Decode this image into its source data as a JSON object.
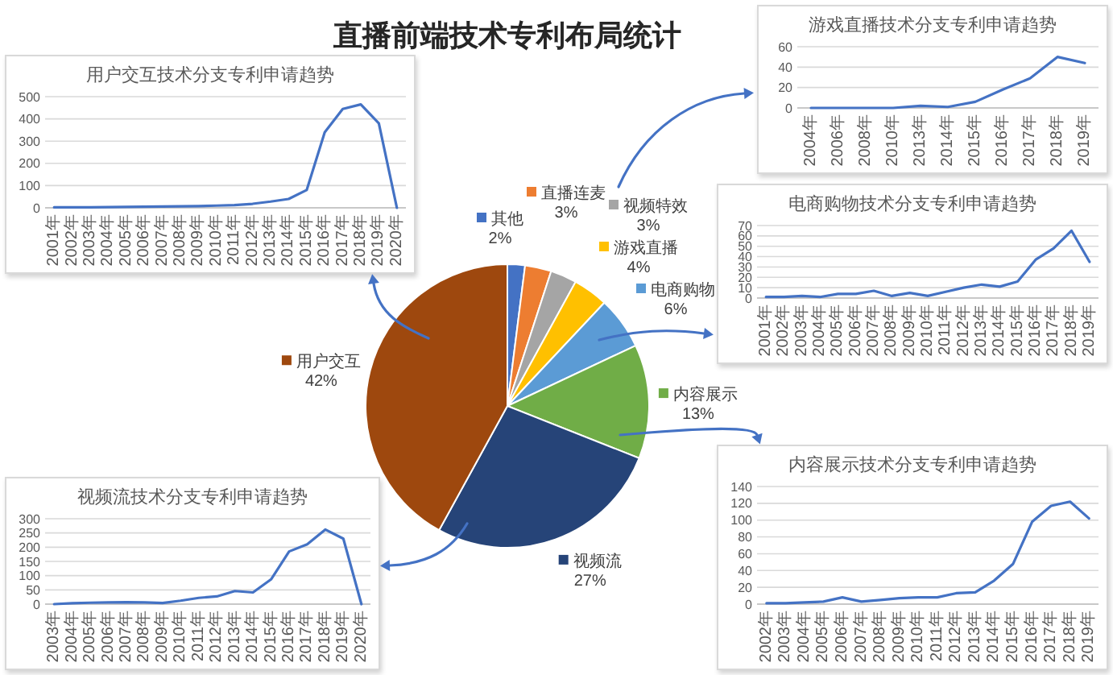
{
  "chart_data": [
    {
      "type": "pie",
      "title": "直播前端技术专利布局统计",
      "categories": [
        "其他",
        "直播连麦",
        "视频特效",
        "游戏直播",
        "电商购物",
        "内容展示",
        "视频流",
        "用户交互"
      ],
      "values": [
        2,
        3,
        3,
        4,
        6,
        13,
        27,
        42
      ],
      "colors": [
        "#4472c4",
        "#ed7d31",
        "#a5a5a5",
        "#ffc000",
        "#5b9bd5",
        "#70ad47",
        "#264478",
        "#9e480e"
      ],
      "value_labels": [
        "2%",
        "3%",
        "3%",
        "4%",
        "6%",
        "13%",
        "27%",
        "42%"
      ],
      "legend": "top right"
    },
    {
      "type": "line",
      "title": "用户交互技术分支专利申请趋势",
      "categories": [
        "2001年",
        "2002年",
        "2003年",
        "2004年",
        "2005年",
        "2006年",
        "2007年",
        "2008年",
        "2009年",
        "2010年",
        "2011年",
        "2012年",
        "2013年",
        "2014年",
        "2015年",
        "2016年",
        "2017年",
        "2018年",
        "2019年",
        "2020年"
      ],
      "series": [
        {
          "color": "#4472c4",
          "values": [
            2,
            2,
            2,
            3,
            4,
            5,
            6,
            7,
            8,
            10,
            12,
            18,
            28,
            40,
            80,
            340,
            445,
            465,
            380,
            0
          ]
        }
      ],
      "ylim": [
        0,
        500
      ],
      "yticks": [
        0,
        100,
        200,
        300,
        400,
        500
      ],
      "grid": "y"
    },
    {
      "type": "line",
      "title": "游戏直播技术分支专利申请趋势",
      "categories": [
        "2004年",
        "2006年",
        "2008年",
        "2010年",
        "2013年",
        "2014年",
        "2015年",
        "2016年",
        "2017年",
        "2018年",
        "2019年"
      ],
      "series": [
        {
          "color": "#4472c4",
          "values": [
            0,
            0,
            0,
            0,
            2,
            1,
            6,
            18,
            29,
            50,
            44
          ]
        }
      ],
      "ylim": [
        0,
        60
      ],
      "yticks": [
        0,
        20,
        40,
        60
      ],
      "grid": "y"
    },
    {
      "type": "line",
      "title": "电商购物技术分支专利申请趋势",
      "categories": [
        "2001年",
        "2002年",
        "2003年",
        "2004年",
        "2005年",
        "2006年",
        "2007年",
        "2008年",
        "2009年",
        "2010年",
        "2011年",
        "2012年",
        "2013年",
        "2014年",
        "2015年",
        "2016年",
        "2017年",
        "2018年",
        "2019年"
      ],
      "series": [
        {
          "color": "#4472c4",
          "values": [
            1,
            1,
            2,
            1,
            4,
            4,
            7,
            2,
            5,
            2,
            6,
            10,
            13,
            11,
            16,
            37,
            48,
            65,
            35
          ]
        }
      ],
      "ylim": [
        0,
        70
      ],
      "yticks": [
        0,
        10,
        20,
        30,
        40,
        50,
        60,
        70
      ],
      "grid": "y"
    },
    {
      "type": "line",
      "title": "视频流技术分支专利申请趋势",
      "categories": [
        "2003年",
        "2004年",
        "2005年",
        "2006年",
        "2007年",
        "2008年",
        "2009年",
        "2010年",
        "2011年",
        "2012年",
        "2013年",
        "2014年",
        "2015年",
        "2016年",
        "2017年",
        "2018年",
        "2019年",
        "2020年"
      ],
      "series": [
        {
          "color": "#4472c4",
          "values": [
            0,
            3,
            5,
            6,
            7,
            6,
            4,
            12,
            22,
            27,
            46,
            41,
            87,
            185,
            210,
            262,
            230,
            0
          ]
        }
      ],
      "ylim": [
        0,
        300
      ],
      "yticks": [
        0,
        50,
        100,
        150,
        200,
        250,
        300
      ],
      "grid": "y"
    },
    {
      "type": "line",
      "title": "内容展示技术分支专利申请趋势",
      "categories": [
        "2002年",
        "2003年",
        "2004年",
        "2005年",
        "2006年",
        "2007年",
        "2008年",
        "2009年",
        "2010年",
        "2011年",
        "2012年",
        "2013年",
        "2014年",
        "2015年",
        "2016年",
        "2017年",
        "2018年",
        "2019年"
      ],
      "series": [
        {
          "color": "#4472c4",
          "values": [
            1,
            1,
            2,
            3,
            8,
            3,
            5,
            7,
            8,
            8,
            13,
            14,
            28,
            48,
            98,
            117,
            122,
            102
          ]
        }
      ],
      "ylim": [
        0,
        140
      ],
      "yticks": [
        0,
        20,
        40,
        60,
        80,
        100,
        120,
        140
      ],
      "grid": "y"
    }
  ]
}
